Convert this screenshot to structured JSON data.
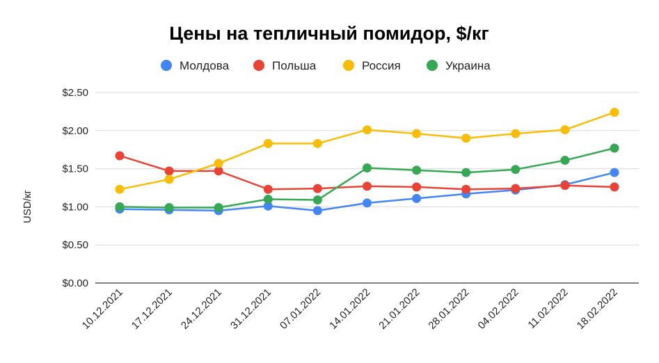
{
  "chart_data": {
    "type": "line",
    "title": "Цены на тепличный помидор, $/кг",
    "ylabel": "USD/кг",
    "xlabel": "",
    "ylim": [
      0,
      2.5
    ],
    "y_ticks": [
      "$0.00",
      "$0.50",
      "$1.00",
      "$1.50",
      "$2.00",
      "$2.50"
    ],
    "grid": true,
    "legend_position": "top",
    "categories": [
      "10.12.2021",
      "17.12.2021",
      "24.12.2021",
      "31.12.2021",
      "07.01.2022",
      "14.01.2022",
      "21.01.2022",
      "28.01.2022",
      "04.02.2022",
      "11.02.2022",
      "18.02.2022"
    ],
    "series": [
      {
        "name": "Молдова",
        "color": "#4285f4",
        "values": [
          0.97,
          0.96,
          0.95,
          1.01,
          0.95,
          1.05,
          1.11,
          1.17,
          1.22,
          1.29,
          1.45
        ]
      },
      {
        "name": "Польша",
        "color": "#ea4335",
        "values": [
          1.67,
          1.47,
          1.47,
          1.23,
          1.24,
          1.27,
          1.26,
          1.23,
          1.24,
          1.28,
          1.26
        ]
      },
      {
        "name": "Россия",
        "color": "#fbbc04",
        "values": [
          1.23,
          1.36,
          1.57,
          1.83,
          1.83,
          2.01,
          1.96,
          1.9,
          1.96,
          2.01,
          2.24
        ]
      },
      {
        "name": "Украина",
        "color": "#34a853",
        "values": [
          1.0,
          0.99,
          0.99,
          1.1,
          1.09,
          1.51,
          1.48,
          1.45,
          1.49,
          1.61,
          1.77
        ]
      }
    ]
  }
}
